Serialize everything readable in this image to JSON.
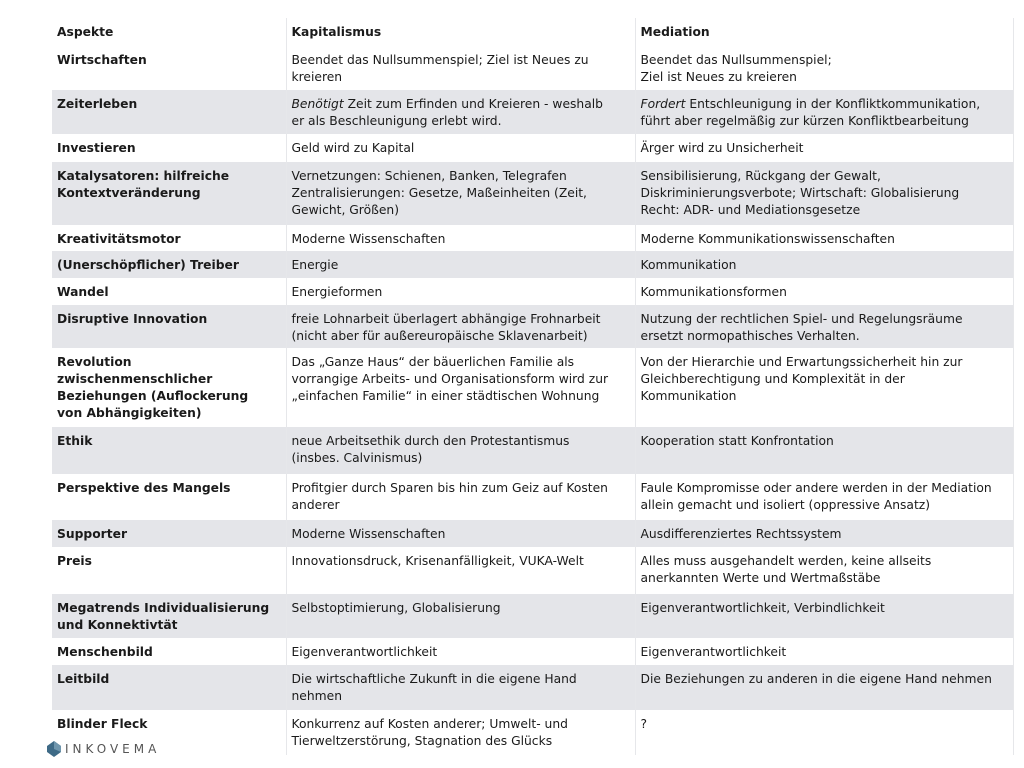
{
  "header": [
    "Aspekte",
    "Kapitalismus",
    "Mediation"
  ],
  "rows": [
    {
      "h": 44,
      "a": "Wirtschaften",
      "k": "Beendet das Nullsummenspiel; Ziel ist Neues zu\nkreieren",
      "m": "Beendet das Nullsummenspiel;\nZiel ist Neues zu kreieren"
    },
    {
      "h": 44,
      "a": "Zeiterleben",
      "k_em": "Benötigt",
      "k": " Zeit zum Erfinden und Kreieren - weshalb\ner als Beschleunigung erlebt wird.",
      "m_em": "Fordert",
      "m": " Entschleunigung in der Konfliktkommunikation,\nführt aber regelmäßig zur kürzen Konfliktbearbeitung"
    },
    {
      "h": 28,
      "a": "Investieren",
      "k": "Geld wird zu Kapital",
      "m": "Ärger wird zu Unsicherheit"
    },
    {
      "h": 63,
      "a": "Katalysatoren: hilfreiche\nKontextveränderung",
      "k": "Vernetzungen: Schienen, Banken, Telegrafen\nZentralisierungen: Gesetze, Maßeinheiten (Zeit,\nGewicht, Größen)",
      "m": "Sensibilisierung, Rückgang der Gewalt,\nDiskriminierungsverbote; Wirtschaft: Globalisierung\nRecht: ADR- und Mediationsgesetze"
    },
    {
      "h": 26,
      "a": "Kreativitätsmotor",
      "k": "Moderne Wissenschaften",
      "m": "Moderne Kommunikationswissenschaften"
    },
    {
      "h": 27,
      "a": "(Unerschöpflicher) Treiber",
      "k": "Energie",
      "m": "Kommunikation"
    },
    {
      "h": 27,
      "a": "Wandel",
      "k": "Energieformen",
      "m": "Kommunikationsformen"
    },
    {
      "h": 43,
      "a": "Disruptive Innovation",
      "k": "freie Lohnarbeit überlagert abhängige Frohnarbeit\n(nicht aber für außereuropäische Sklavenarbeit)",
      "m": "Nutzung der rechtlichen Spiel- und Regelungsräume\nersetzt normopathisches Verhalten."
    },
    {
      "h": 79,
      "a": "Revolution\nzwischenmenschlicher\nBeziehungen (Auflockerung\nvon Abhängigkeiten)",
      "k": "Das „Ganze Haus“ der bäuerlichen Familie als\nvorrangige Arbeits- und Organisationsform wird zur\n„einfachen Familie“ in einer städtischen Wohnung",
      "m": "Von der Hierarchie und Erwartungssicherheit hin zur\nGleichberechtigung und Komplexität in der\nKommunikation"
    },
    {
      "h": 47,
      "a": "Ethik",
      "k": "neue Arbeitsethik durch den Protestantismus\n(insbes. Calvinismus)",
      "m": "Kooperation statt Konfrontation"
    },
    {
      "h": 46,
      "a": "Perspektive des Mangels",
      "k": "Profitgier durch Sparen bis hin zum Geiz auf Kosten\nanderer",
      "m": "Faule Kompromisse oder andere werden in der Mediation\nallein gemacht und isoliert (oppressive Ansatz)"
    },
    {
      "h": 27,
      "a": "Supporter",
      "k": "Moderne Wissenschaften",
      "m": "Ausdifferenziertes Rechtssystem"
    },
    {
      "h": 47,
      "a": "Preis",
      "k": "Innovationsdruck, Krisenanfälligkeit, VUKA-Welt",
      "m": "Alles muss ausgehandelt werden, keine allseits\nanerkannten Werte und Wertmaßstäbe"
    },
    {
      "h": 44,
      "a": "Megatrends Individualisierung\nund Konnektivtät",
      "k": "Selbstoptimierung, Globalisierung",
      "m": "Eigenverantwortlichkeit, Verbindlichkeit"
    },
    {
      "h": 27,
      "a": "Menschenbild",
      "k": "Eigenverantwortlichkeit",
      "m": "Eigenverantwortlichkeit"
    },
    {
      "h": 45,
      "a": "Leitbild",
      "k": "Die wirtschaftliche Zukunft in die eigene Hand\nnehmen",
      "m": "Die Beziehungen zu anderen in die eigene Hand nehmen"
    },
    {
      "h": 45,
      "a": "Blinder Fleck",
      "k": "Konkurrenz auf Kosten anderer; Umwelt- und\nTierweltzerstörung, Stagnation des Glücks",
      "m": "?"
    }
  ],
  "logo": {
    "text": "INKOVEMA",
    "color": "#3e6a86"
  },
  "colors": {
    "stripe": "#e4e5e9"
  }
}
